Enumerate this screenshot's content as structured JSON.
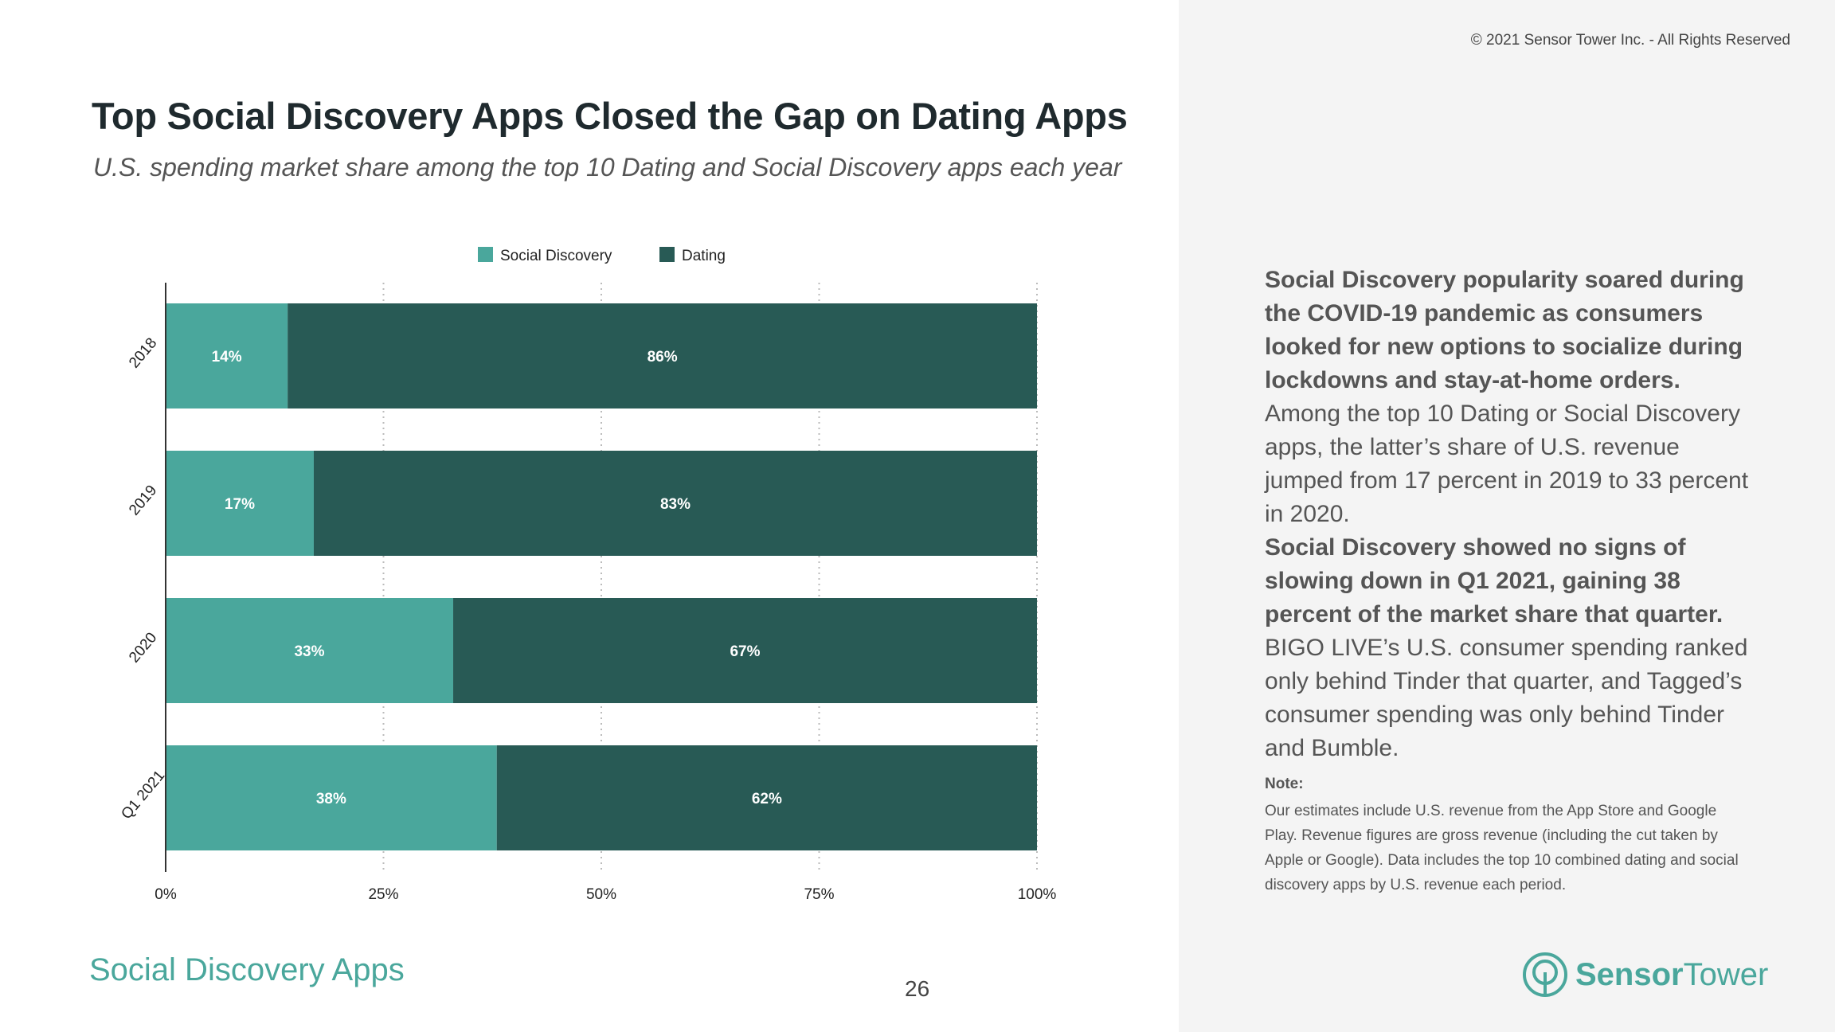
{
  "copyright": "© 2021 Sensor Tower Inc. - All Rights Reserved",
  "header": {
    "title": "Top Social Discovery Apps Closed the Gap on Dating Apps",
    "subtitle": "U.S. spending market share among the top 10 Dating and Social Discovery apps each year"
  },
  "colors": {
    "social_discovery": "#4aa79c",
    "dating": "#285a55",
    "accent": "#4aa79c"
  },
  "chart_data": {
    "type": "bar",
    "orientation": "horizontal",
    "stacked": true,
    "categories": [
      "2018",
      "2019",
      "2020",
      "Q1 2021"
    ],
    "series": [
      {
        "name": "Social Discovery",
        "values": [
          14,
          17,
          33,
          38
        ],
        "labels": [
          "14%",
          "17%",
          "33%",
          "38%"
        ]
      },
      {
        "name": "Dating",
        "values": [
          86,
          83,
          67,
          62
        ],
        "labels": [
          "86%",
          "83%",
          "67%",
          "62%"
        ]
      }
    ],
    "xlim": [
      0,
      100
    ],
    "xticks": [
      "0%",
      "25%",
      "50%",
      "75%",
      "100%"
    ],
    "xtick_values": [
      0,
      25,
      50,
      75,
      100
    ],
    "grid": "vertical dotted",
    "legend": "top-center"
  },
  "commentary": {
    "p1_bold": "Social Discovery popularity soared during the COVID-19 pandemic as consumers looked for new options to socialize during lockdowns and stay-at-home orders.",
    "p1_rest": " Among the top 10 Dating or Social Discovery apps, the latter’s share of U.S. revenue jumped from 17 percent in 2019 to 33 percent in 2020.",
    "p2_bold": "Social Discovery showed no signs of slowing down in Q1 2021, gaining 38 percent of the market share that quarter.",
    "p2_rest": " BIGO LIVE’s U.S. consumer spending ranked only behind Tinder that quarter, and Tagged’s consumer spending was only behind Tinder and Bumble.",
    "note_label": "Note:",
    "note_text": "Our estimates include U.S. revenue from the App Store and Google Play. Revenue figures are gross revenue (including the cut taken by Apple or Google). Data includes the top 10 combined dating and social discovery apps by U.S. revenue each period."
  },
  "footer": {
    "section": "Social Discovery Apps",
    "page_number": "26",
    "brand_part1": "Sensor",
    "brand_part2": "Tower",
    "brand_icon": "sensor-tower-logo-icon"
  }
}
